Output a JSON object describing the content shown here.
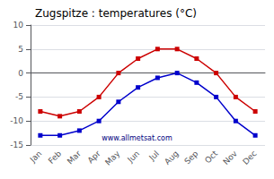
{
  "chart_data": {
    "type": "line",
    "title": "Zugspitze : temperatures (°C)",
    "categories": [
      "Jan",
      "Feb",
      "Mar",
      "Apr",
      "May",
      "Jun",
      "Jul",
      "Aug",
      "Sep",
      "Oct",
      "Nov",
      "Dec"
    ],
    "series": [
      {
        "color": "#cc0000",
        "marker": "square",
        "values": [
          -8,
          -9,
          -8,
          -5,
          0,
          3,
          5,
          5,
          3,
          0,
          -5,
          -8
        ]
      },
      {
        "color": "#0000cc",
        "marker": "square",
        "values": [
          -13,
          -13,
          -12,
          -10,
          -6,
          -3,
          -1,
          0,
          -2,
          -5,
          -10,
          -13
        ]
      }
    ],
    "ylim": [
      -15,
      10
    ],
    "yticks": [
      -15,
      -10,
      -5,
      0,
      5,
      10
    ],
    "grid": true,
    "annotation": "www.allmetsat.com"
  }
}
